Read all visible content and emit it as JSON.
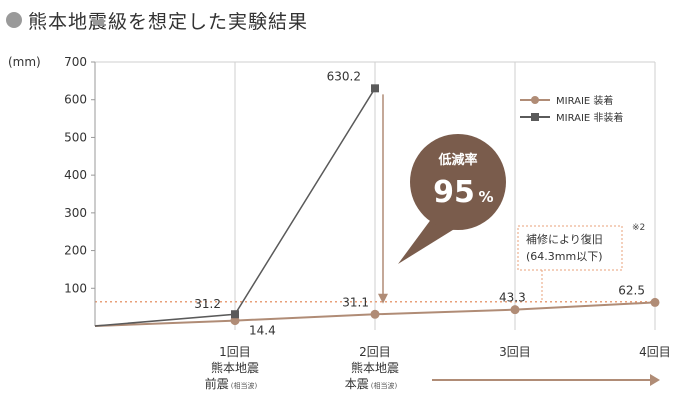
{
  "title": "熊本地震級を想定した実験結果",
  "chart_data": {
    "type": "line",
    "unit_label": "(mm)",
    "ylim": [
      0,
      700
    ],
    "yticks": [
      100,
      200,
      300,
      400,
      500,
      600,
      700
    ],
    "x_categories": [
      {
        "line1": "1回目",
        "line2": "熊本地震",
        "line3": "前震",
        "line3_sub": "(相当波)"
      },
      {
        "line1": "2回目",
        "line2": "熊本地震",
        "line3": "本震",
        "line3_sub": "(相当波)"
      },
      {
        "line1": "3回目",
        "line2": "",
        "line3": "",
        "line3_sub": ""
      },
      {
        "line1": "4回目",
        "line2": "",
        "line3": "",
        "line3_sub": ""
      }
    ],
    "series": [
      {
        "name": "MIRAIE 装着",
        "color": "#b08c76",
        "x": [
          0,
          1,
          2,
          3,
          4
        ],
        "values": [
          0,
          14.4,
          31.1,
          43.3,
          62.5
        ]
      },
      {
        "name": "MIRAIE 非装着",
        "color": "#5a5a5a",
        "x": [
          0,
          1,
          2
        ],
        "values": [
          0,
          31.2,
          630.2
        ]
      }
    ],
    "data_labels": [
      "31.2",
      "14.4",
      "630.2",
      "31.1",
      "43.3",
      "62.5"
    ],
    "reference_line": {
      "value": 64.3,
      "color": "#e8a07a"
    },
    "legend_position": "top-right",
    "grid": "vertical"
  },
  "callout": {
    "label": "低減率",
    "value": "95",
    "unit": "%"
  },
  "note": {
    "line1": "補修により復旧",
    "line2": "(64.3mm以下)",
    "mark": "※2"
  },
  "colors": {
    "bubble": "#7a5c4c",
    "arrow": "#b08c76",
    "grid": "#cfcfcf",
    "axis": "#999999"
  }
}
